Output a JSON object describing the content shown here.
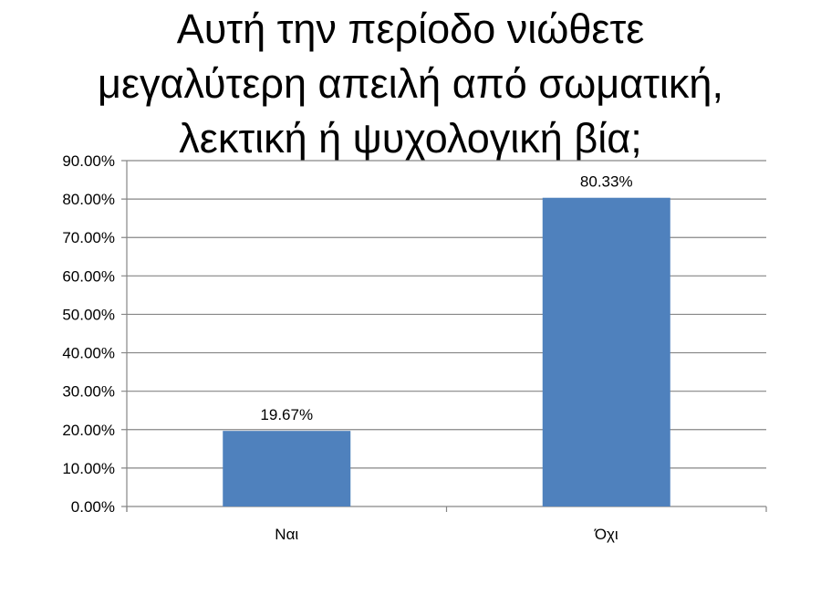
{
  "chart_data": {
    "type": "bar",
    "title_lines": [
      "Αυτή την περίοδο νιώθετε",
      "μεγαλύτερη απειλή από σωματική,",
      "λεκτική ή ψυχολογική βία;"
    ],
    "categories": [
      "Ναι",
      "Όχι"
    ],
    "values": [
      19.67,
      80.33
    ],
    "data_labels": [
      "19.67%",
      "80.33%"
    ],
    "ylim": [
      0,
      90
    ],
    "yticks": [
      "0.00%",
      "10.00%",
      "20.00%",
      "30.00%",
      "40.00%",
      "50.00%",
      "60.00%",
      "70.00%",
      "80.00%",
      "90.00%"
    ],
    "grid": true,
    "legend": "none",
    "bar_color": "#4F81BD",
    "xlabel": "",
    "ylabel": ""
  }
}
